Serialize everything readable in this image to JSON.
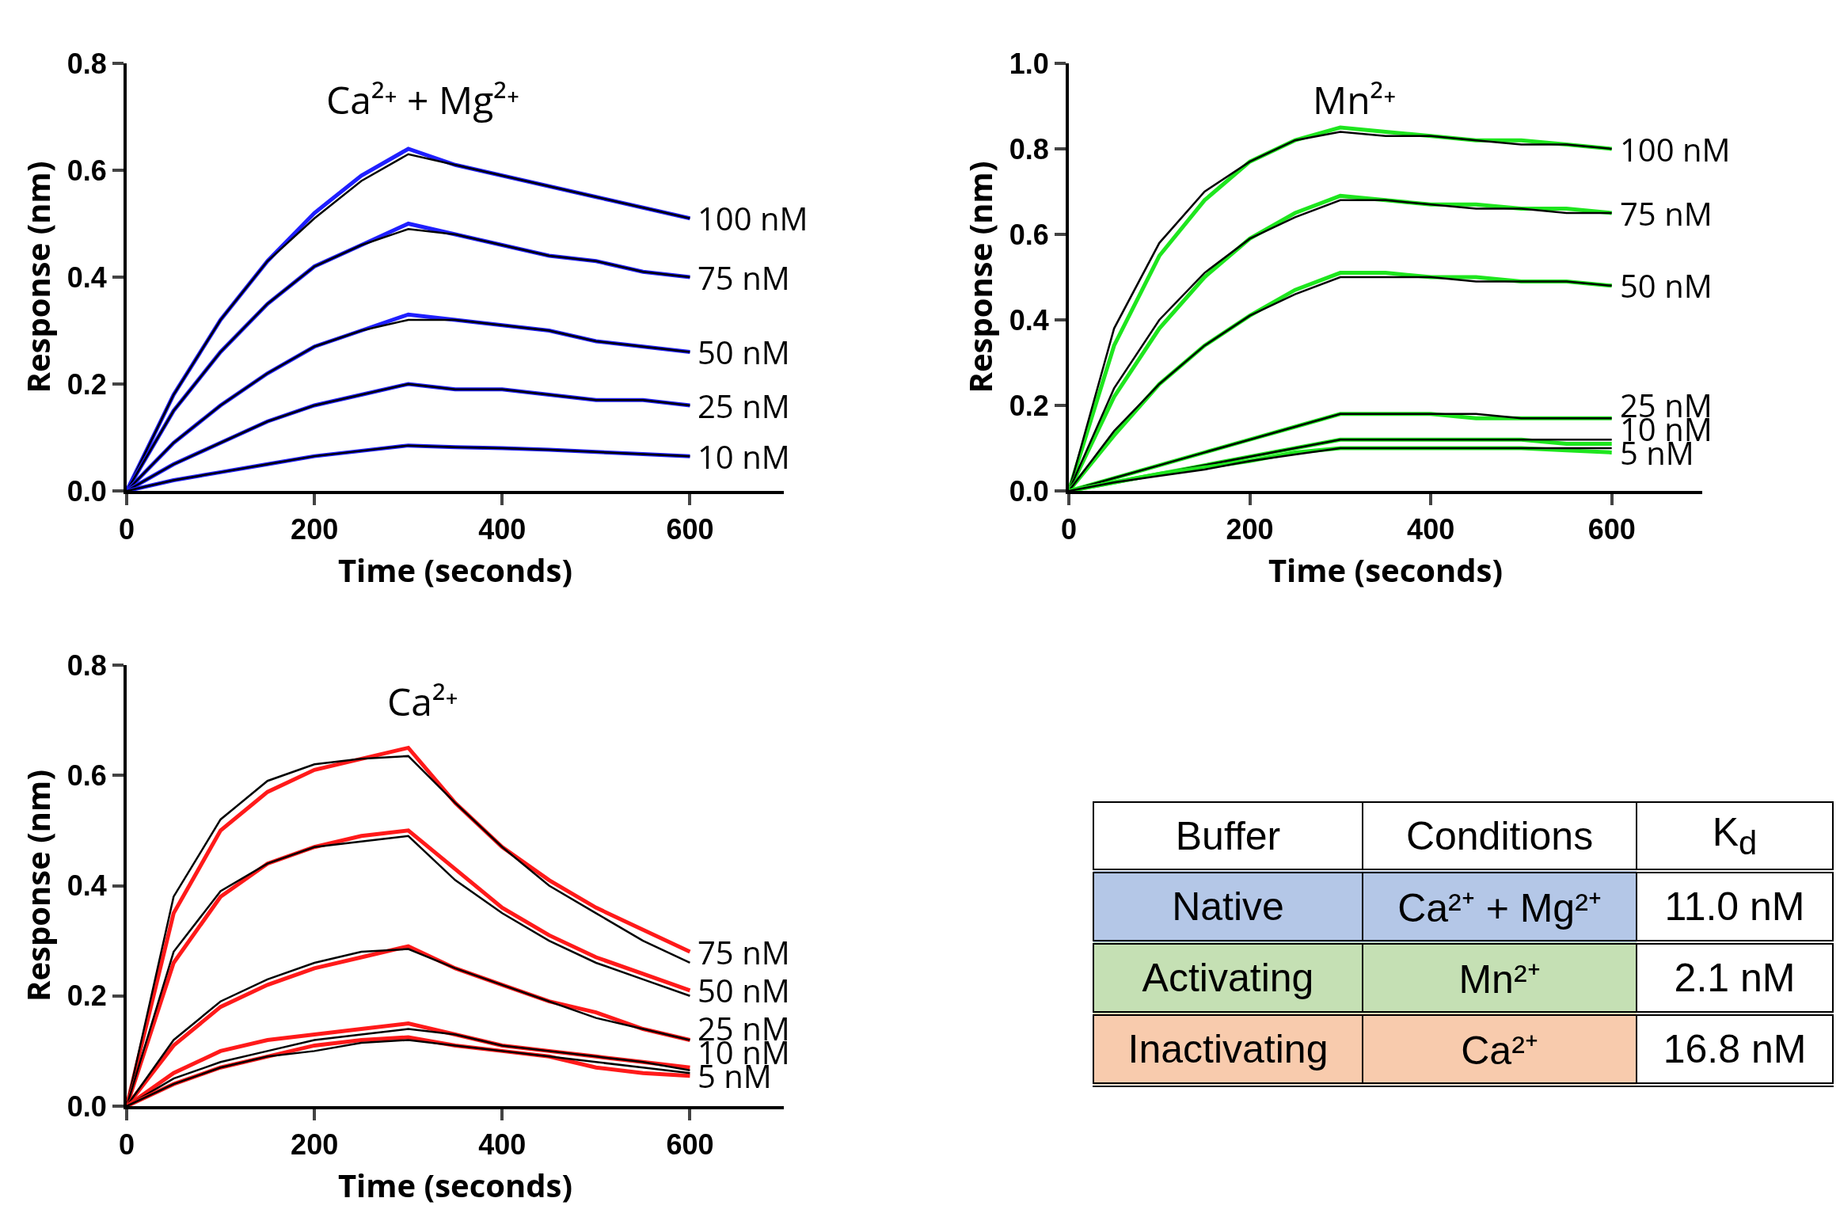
{
  "chart_data": [
    {
      "type": "line",
      "title": "Ca²⁺ + Mg²⁺",
      "xlabel": "Time (seconds)",
      "ylabel": "Response (nm)",
      "xlim": [
        0,
        700
      ],
      "xticks": [
        0,
        200,
        400,
        600
      ],
      "ylim": [
        0,
        0.8
      ],
      "yticks": [
        {
          "value": 0,
          "label": "0.0"
        },
        0.2,
        0.4,
        0.6,
        0.8
      ],
      "series": [
        {
          "name": "100 nM",
          "color": "#1f1fff",
          "x": [
            0,
            50,
            100,
            150,
            200,
            250,
            300,
            350,
            400,
            450,
            500,
            550,
            600
          ],
          "values": [
            0,
            0.18,
            0.32,
            0.43,
            0.52,
            0.59,
            0.64,
            0.61,
            0.59,
            0.57,
            0.55,
            0.53,
            0.51
          ]
        },
        {
          "color": "#000000",
          "x": [
            0,
            50,
            100,
            150,
            200,
            250,
            300,
            350,
            400,
            450,
            500,
            550,
            600
          ],
          "values": [
            0,
            0.18,
            0.32,
            0.43,
            0.51,
            0.58,
            0.63,
            0.61,
            0.59,
            0.57,
            0.55,
            0.53,
            0.51
          ]
        },
        {
          "name": "75 nM",
          "color": "#1f1fff",
          "x": [
            0,
            50,
            100,
            150,
            200,
            250,
            300,
            350,
            400,
            450,
            500,
            550,
            600
          ],
          "values": [
            0,
            0.15,
            0.26,
            0.35,
            0.42,
            0.46,
            0.5,
            0.48,
            0.46,
            0.44,
            0.43,
            0.41,
            0.4
          ]
        },
        {
          "color": "#000000",
          "x": [
            0,
            50,
            100,
            150,
            200,
            250,
            300,
            350,
            400,
            450,
            500,
            550,
            600
          ],
          "values": [
            0,
            0.15,
            0.26,
            0.35,
            0.42,
            0.46,
            0.49,
            0.48,
            0.46,
            0.44,
            0.43,
            0.41,
            0.4
          ]
        },
        {
          "name": "50 nM",
          "color": "#1f1fff",
          "x": [
            0,
            50,
            100,
            150,
            200,
            250,
            300,
            350,
            400,
            450,
            500,
            550,
            600
          ],
          "values": [
            0,
            0.09,
            0.16,
            0.22,
            0.27,
            0.3,
            0.33,
            0.32,
            0.31,
            0.3,
            0.28,
            0.27,
            0.26
          ]
        },
        {
          "color": "#000000",
          "x": [
            0,
            50,
            100,
            150,
            200,
            250,
            300,
            350,
            400,
            450,
            500,
            550,
            600
          ],
          "values": [
            0,
            0.09,
            0.16,
            0.22,
            0.27,
            0.3,
            0.32,
            0.32,
            0.31,
            0.3,
            0.28,
            0.27,
            0.26
          ]
        },
        {
          "name": "25 nM",
          "color": "#1f1fff",
          "x": [
            0,
            50,
            100,
            150,
            200,
            250,
            300,
            350,
            400,
            450,
            500,
            550,
            600
          ],
          "values": [
            0,
            0.05,
            0.09,
            0.13,
            0.16,
            0.18,
            0.2,
            0.19,
            0.19,
            0.18,
            0.17,
            0.17,
            0.16
          ]
        },
        {
          "color": "#000000",
          "x": [
            0,
            50,
            100,
            150,
            200,
            250,
            300,
            350,
            400,
            450,
            500,
            550,
            600
          ],
          "values": [
            0,
            0.05,
            0.09,
            0.13,
            0.16,
            0.18,
            0.2,
            0.19,
            0.19,
            0.18,
            0.17,
            0.17,
            0.16
          ]
        },
        {
          "name": "10 nM",
          "color": "#1f1fff",
          "x": [
            0,
            50,
            100,
            150,
            200,
            250,
            300,
            350,
            400,
            450,
            500,
            550,
            600
          ],
          "values": [
            0,
            0.02,
            0.035,
            0.05,
            0.065,
            0.075,
            0.085,
            0.082,
            0.08,
            0.077,
            0.073,
            0.069,
            0.065
          ]
        },
        {
          "color": "#000000",
          "x": [
            0,
            50,
            100,
            150,
            200,
            250,
            300,
            350,
            400,
            450,
            500,
            550,
            600
          ],
          "values": [
            0,
            0.02,
            0.035,
            0.05,
            0.065,
            0.075,
            0.085,
            0.082,
            0.08,
            0.077,
            0.073,
            0.069,
            0.065
          ]
        }
      ]
    },
    {
      "type": "line",
      "title": "Mn²⁺",
      "xlabel": "Time (seconds)",
      "ylabel": "Response (nm)",
      "xlim": [
        0,
        700
      ],
      "xticks": [
        0,
        200,
        400,
        600
      ],
      "ylim": [
        0,
        1.0
      ],
      "yticks": [
        {
          "value": 0,
          "label": "0.0"
        },
        {
          "value": 0.2,
          "label": "0.2"
        },
        {
          "value": 0.4,
          "label": "0.4"
        },
        {
          "value": 0.6,
          "label": "0.6"
        },
        {
          "value": 0.8,
          "label": "0.8"
        },
        {
          "value": 1.0,
          "label": "1.0"
        }
      ],
      "series": [
        {
          "name": "100 nM",
          "color": "#1ee61e",
          "x": [
            0,
            50,
            100,
            150,
            200,
            250,
            300,
            350,
            400,
            450,
            500,
            550,
            600
          ],
          "values": [
            0,
            0.34,
            0.55,
            0.68,
            0.77,
            0.82,
            0.85,
            0.84,
            0.83,
            0.82,
            0.82,
            0.81,
            0.8
          ]
        },
        {
          "color": "#000000",
          "x": [
            0,
            50,
            100,
            150,
            200,
            250,
            300,
            350,
            400,
            450,
            500,
            550,
            600
          ],
          "values": [
            0,
            0.38,
            0.58,
            0.7,
            0.77,
            0.82,
            0.84,
            0.83,
            0.83,
            0.82,
            0.81,
            0.81,
            0.8
          ]
        },
        {
          "name": "75 nM",
          "color": "#1ee61e",
          "x": [
            0,
            50,
            100,
            150,
            200,
            250,
            300,
            350,
            400,
            450,
            500,
            550,
            600
          ],
          "values": [
            0,
            0.22,
            0.38,
            0.5,
            0.59,
            0.65,
            0.69,
            0.68,
            0.67,
            0.67,
            0.66,
            0.66,
            0.65
          ]
        },
        {
          "color": "#000000",
          "x": [
            0,
            50,
            100,
            150,
            200,
            250,
            300,
            350,
            400,
            450,
            500,
            550,
            600
          ],
          "values": [
            0,
            0.24,
            0.4,
            0.51,
            0.59,
            0.64,
            0.68,
            0.68,
            0.67,
            0.66,
            0.66,
            0.65,
            0.65
          ]
        },
        {
          "name": "50 nM",
          "color": "#1ee61e",
          "x": [
            0,
            50,
            100,
            150,
            200,
            250,
            300,
            350,
            400,
            450,
            500,
            550,
            600
          ],
          "values": [
            0,
            0.13,
            0.25,
            0.34,
            0.41,
            0.47,
            0.51,
            0.51,
            0.5,
            0.5,
            0.49,
            0.49,
            0.48
          ]
        },
        {
          "color": "#000000",
          "x": [
            0,
            50,
            100,
            150,
            200,
            250,
            300,
            350,
            400,
            450,
            500,
            550,
            600
          ],
          "values": [
            0,
            0.14,
            0.25,
            0.34,
            0.41,
            0.46,
            0.5,
            0.5,
            0.5,
            0.49,
            0.49,
            0.49,
            0.48
          ]
        },
        {
          "name": "25 nM",
          "color": "#1ee61e",
          "x": [
            0,
            50,
            100,
            150,
            200,
            250,
            300,
            350,
            400,
            450,
            500,
            550,
            600
          ],
          "values": [
            0,
            0.03,
            0.06,
            0.09,
            0.12,
            0.15,
            0.18,
            0.18,
            0.18,
            0.17,
            0.17,
            0.17,
            0.17
          ]
        },
        {
          "color": "#000000",
          "x": [
            0,
            50,
            100,
            150,
            200,
            250,
            300,
            350,
            400,
            450,
            500,
            550,
            600
          ],
          "values": [
            0,
            0.03,
            0.06,
            0.09,
            0.12,
            0.15,
            0.18,
            0.18,
            0.18,
            0.18,
            0.17,
            0.17,
            0.17
          ]
        },
        {
          "name": "10 nM",
          "color": "#1ee61e",
          "x": [
            0,
            50,
            100,
            150,
            200,
            250,
            300,
            350,
            400,
            450,
            500,
            550,
            600
          ],
          "values": [
            0,
            0.02,
            0.04,
            0.06,
            0.08,
            0.1,
            0.12,
            0.12,
            0.12,
            0.12,
            0.12,
            0.11,
            0.11
          ]
        },
        {
          "color": "#000000",
          "x": [
            0,
            50,
            100,
            150,
            200,
            250,
            300,
            350,
            400,
            450,
            500,
            550,
            600
          ],
          "values": [
            0,
            0.02,
            0.04,
            0.06,
            0.08,
            0.1,
            0.12,
            0.12,
            0.12,
            0.12,
            0.12,
            0.12,
            0.12
          ]
        },
        {
          "name": "5 nM",
          "color": "#1ee61e",
          "x": [
            0,
            50,
            100,
            150,
            200,
            250,
            300,
            350,
            400,
            450,
            500,
            550,
            600
          ],
          "values": [
            0,
            0.02,
            0.04,
            0.055,
            0.07,
            0.09,
            0.1,
            0.1,
            0.1,
            0.1,
            0.1,
            0.095,
            0.09
          ]
        },
        {
          "color": "#000000",
          "x": [
            0,
            50,
            100,
            150,
            200,
            250,
            300,
            350,
            400,
            450,
            500,
            550,
            600
          ],
          "values": [
            0,
            0.02,
            0.035,
            0.05,
            0.07,
            0.085,
            0.1,
            0.1,
            0.1,
            0.1,
            0.1,
            0.1,
            0.1
          ]
        }
      ]
    },
    {
      "type": "line",
      "title": "Ca²⁺",
      "xlabel": "Time (seconds)",
      "ylabel": "Response (nm)",
      "xlim": [
        0,
        700
      ],
      "xticks": [
        0,
        200,
        400,
        600
      ],
      "ylim": [
        0,
        0.8
      ],
      "yticks": [
        {
          "value": 0,
          "label": "0.0"
        },
        0.2,
        0.4,
        0.6,
        0.8
      ],
      "series": [
        {
          "name": "75 nM",
          "color": "#ff1a1a",
          "x": [
            0,
            50,
            100,
            150,
            200,
            250,
            300,
            350,
            400,
            450,
            500,
            550,
            600
          ],
          "values": [
            0,
            0.35,
            0.5,
            0.57,
            0.61,
            0.63,
            0.65,
            0.55,
            0.47,
            0.41,
            0.36,
            0.32,
            0.28
          ]
        },
        {
          "color": "#000000",
          "x": [
            0,
            50,
            100,
            150,
            200,
            250,
            300,
            350,
            400,
            450,
            500,
            550,
            600
          ],
          "values": [
            0,
            0.38,
            0.52,
            0.59,
            0.62,
            0.63,
            0.635,
            0.55,
            0.47,
            0.4,
            0.35,
            0.3,
            0.26
          ]
        },
        {
          "name": "50 nM",
          "color": "#ff1a1a",
          "x": [
            0,
            50,
            100,
            150,
            200,
            250,
            300,
            350,
            400,
            450,
            500,
            550,
            600
          ],
          "values": [
            0,
            0.26,
            0.38,
            0.44,
            0.47,
            0.49,
            0.5,
            0.43,
            0.36,
            0.31,
            0.27,
            0.24,
            0.21
          ]
        },
        {
          "color": "#000000",
          "x": [
            0,
            50,
            100,
            150,
            200,
            250,
            300,
            350,
            400,
            450,
            500,
            550,
            600
          ],
          "values": [
            0,
            0.28,
            0.39,
            0.44,
            0.47,
            0.48,
            0.49,
            0.41,
            0.35,
            0.3,
            0.26,
            0.23,
            0.2
          ]
        },
        {
          "name": "25 nM",
          "color": "#ff1a1a",
          "x": [
            0,
            50,
            100,
            150,
            200,
            250,
            300,
            350,
            400,
            450,
            500,
            550,
            600
          ],
          "values": [
            0,
            0.11,
            0.18,
            0.22,
            0.25,
            0.27,
            0.29,
            0.25,
            0.22,
            0.19,
            0.17,
            0.14,
            0.12
          ]
        },
        {
          "color": "#000000",
          "x": [
            0,
            50,
            100,
            150,
            200,
            250,
            300,
            350,
            400,
            450,
            500,
            550,
            600
          ],
          "values": [
            0,
            0.12,
            0.19,
            0.23,
            0.26,
            0.28,
            0.285,
            0.25,
            0.22,
            0.19,
            0.16,
            0.14,
            0.12
          ]
        },
        {
          "name": "10 nM",
          "color": "#ff1a1a",
          "x": [
            0,
            50,
            100,
            150,
            200,
            250,
            300,
            350,
            400,
            450,
            500,
            550,
            600
          ],
          "values": [
            0,
            0.06,
            0.1,
            0.12,
            0.13,
            0.14,
            0.15,
            0.13,
            0.11,
            0.1,
            0.09,
            0.08,
            0.07
          ]
        },
        {
          "color": "#000000",
          "x": [
            0,
            50,
            100,
            150,
            200,
            250,
            300,
            350,
            400,
            450,
            500,
            550,
            600
          ],
          "values": [
            0,
            0.05,
            0.08,
            0.1,
            0.12,
            0.13,
            0.14,
            0.13,
            0.11,
            0.1,
            0.09,
            0.08,
            0.065
          ]
        },
        {
          "name": "5 nM",
          "color": "#ff1a1a",
          "x": [
            0,
            50,
            100,
            150,
            200,
            250,
            300,
            350,
            400,
            450,
            500,
            550,
            600
          ],
          "values": [
            0,
            0.04,
            0.07,
            0.09,
            0.11,
            0.12,
            0.125,
            0.11,
            0.1,
            0.09,
            0.07,
            0.06,
            0.055
          ]
        },
        {
          "color": "#000000",
          "x": [
            0,
            50,
            100,
            150,
            200,
            250,
            300,
            350,
            400,
            450,
            500,
            550,
            600
          ],
          "values": [
            0,
            0.04,
            0.07,
            0.09,
            0.1,
            0.115,
            0.12,
            0.11,
            0.1,
            0.09,
            0.08,
            0.07,
            0.06
          ]
        }
      ]
    },
    {
      "type": "other",
      "categories": [
        "Buffer",
        "Conditions",
        "K$_{d}$"
      ],
      "cell_labels": [
        [
          "Native",
          "Ca²⁺ + Mg²⁺",
          "11.0 nM"
        ],
        [
          "Activating",
          "Mn²⁺",
          "2.1 nM"
        ],
        [
          "Inactivating",
          "Ca²⁺",
          "16.8 nM"
        ]
      ],
      "colors": [
        "#b4c7e7",
        "#c5e0b4",
        "#f8cbad"
      ]
    }
  ]
}
